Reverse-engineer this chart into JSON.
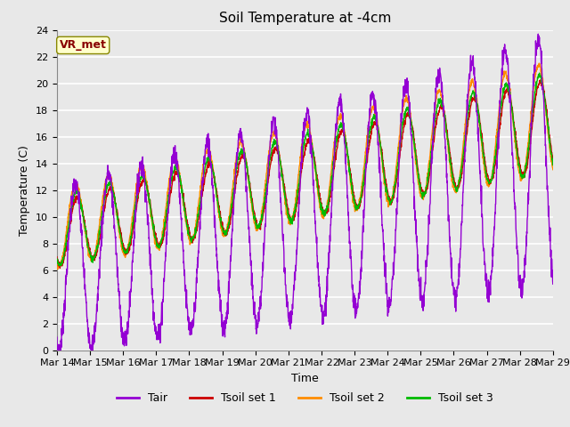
{
  "title": "Soil Temperature at -4cm",
  "xlabel": "Time",
  "ylabel": "Temperature (C)",
  "ylim": [
    0,
    24
  ],
  "yticks": [
    0,
    2,
    4,
    6,
    8,
    10,
    12,
    14,
    16,
    18,
    20,
    22,
    24
  ],
  "date_labels": [
    "Mar 14",
    "Mar 15",
    "Mar 16",
    "Mar 17",
    "Mar 18",
    "Mar 19",
    "Mar 20",
    "Mar 21",
    "Mar 22",
    "Mar 23",
    "Mar 24",
    "Mar 25",
    "Mar 26",
    "Mar 27",
    "Mar 28",
    "Mar 29"
  ],
  "colors": {
    "Tair": "#9400D3",
    "Tsoil1": "#CC0000",
    "Tsoil2": "#FF8C00",
    "Tsoil3": "#00BB00"
  },
  "legend_labels": [
    "Tair",
    "Tsoil set 1",
    "Tsoil set 2",
    "Tsoil set 3"
  ],
  "annotation_text": "VR_met",
  "annotation_box_facecolor": "#FFFFCC",
  "annotation_box_edgecolor": "#888800",
  "annotation_text_color": "#880000",
  "bg_color": "#E8E8E8",
  "plot_bg_color": "#E8E8E8",
  "title_fontsize": 11,
  "axis_fontsize": 9,
  "tick_fontsize": 8,
  "legend_fontsize": 9,
  "linewidth": 1.0
}
